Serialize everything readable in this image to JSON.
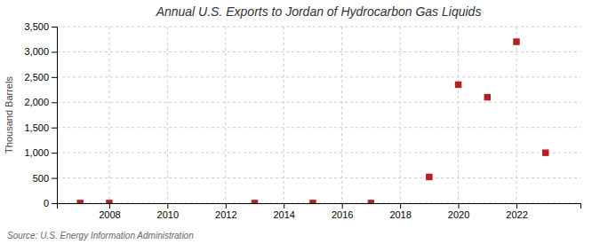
{
  "chart_data": {
    "type": "scatter",
    "title": "Annual U.S. Exports to Jordan of Hydrocarbon Gas Liquids",
    "ylabel": "Thousand Barrels",
    "source": "Source: U.S. Energy Information Administration",
    "x": [
      2007,
      2008,
      2013,
      2015,
      2017,
      2019,
      2020,
      2021,
      2022,
      2023
    ],
    "values": [
      2,
      2,
      2,
      2,
      2,
      520,
      2350,
      2100,
      3200,
      1000
    ],
    "color": "#b22222",
    "marker": "square",
    "xlim": [
      2006.2,
      2024.2
    ],
    "xticks": [
      2008,
      2010,
      2012,
      2014,
      2016,
      2018,
      2020,
      2022
    ],
    "ylim": [
      0,
      3500
    ],
    "yticks": [
      0,
      500,
      {
        "value": 1000,
        "label": "1,000"
      },
      {
        "value": 1500,
        "label": "1,500"
      },
      {
        "value": 2000,
        "label": "2,000"
      },
      {
        "value": 2500,
        "label": "2,500"
      },
      {
        "value": 3000,
        "label": "3,000"
      },
      {
        "value": 3500,
        "label": "3,500"
      }
    ],
    "grid": true
  }
}
